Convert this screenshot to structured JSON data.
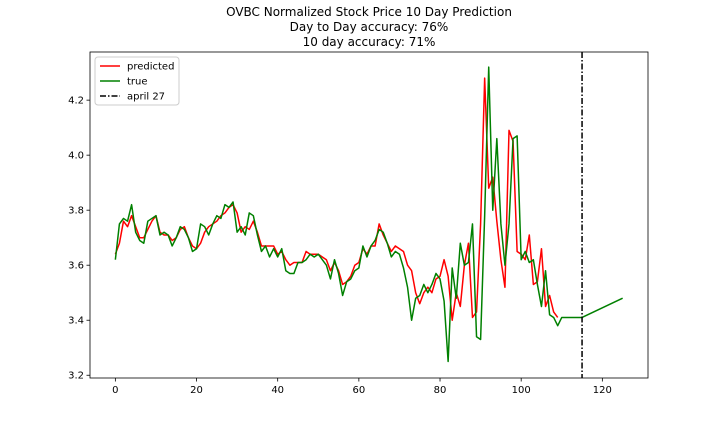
{
  "chart_data": {
    "type": "line",
    "title_lines": [
      "OVBC Normalized Stock Price 10 Day Prediction",
      "Day to Day accuracy: 76%",
      "10 day accuracy: 71%"
    ],
    "xlabel": "",
    "ylabel": "",
    "xlim": [
      -6.25,
      131.25
    ],
    "ylim": [
      3.19,
      4.375
    ],
    "x_ticks": [
      0,
      20,
      40,
      60,
      80,
      100,
      120
    ],
    "y_ticks": [
      3.2,
      3.4,
      3.6,
      3.8,
      4.0,
      4.2
    ],
    "y_tick_labels": [
      "3.2",
      "3.4",
      "3.6",
      "3.8",
      "4.0",
      "4.2"
    ],
    "legend_position": "top-left",
    "grid": false,
    "series": [
      {
        "name": "predicted",
        "color": "#ff0000",
        "style": "solid",
        "points": [
          [
            0,
            3.64
          ],
          [
            1,
            3.68
          ],
          [
            2,
            3.76
          ],
          [
            3,
            3.74
          ],
          [
            4,
            3.78
          ],
          [
            5,
            3.74
          ],
          [
            6,
            3.7
          ],
          [
            7,
            3.7
          ],
          [
            8,
            3.73
          ],
          [
            9,
            3.76
          ],
          [
            10,
            3.78
          ],
          [
            11,
            3.72
          ],
          [
            12,
            3.71
          ],
          [
            13,
            3.71
          ],
          [
            14,
            3.69
          ],
          [
            15,
            3.7
          ],
          [
            16,
            3.73
          ],
          [
            17,
            3.74
          ],
          [
            18,
            3.7
          ],
          [
            19,
            3.67
          ],
          [
            20,
            3.66
          ],
          [
            21,
            3.68
          ],
          [
            22,
            3.72
          ],
          [
            23,
            3.74
          ],
          [
            24,
            3.75
          ],
          [
            25,
            3.76
          ],
          [
            26,
            3.78
          ],
          [
            27,
            3.79
          ],
          [
            28,
            3.81
          ],
          [
            29,
            3.82
          ],
          [
            30,
            3.79
          ],
          [
            31,
            3.72
          ],
          [
            32,
            3.74
          ],
          [
            33,
            3.73
          ],
          [
            34,
            3.76
          ],
          [
            35,
            3.72
          ],
          [
            36,
            3.67
          ],
          [
            37,
            3.67
          ],
          [
            38,
            3.67
          ],
          [
            39,
            3.67
          ],
          [
            40,
            3.64
          ],
          [
            41,
            3.65
          ],
          [
            42,
            3.62
          ],
          [
            43,
            3.6
          ],
          [
            44,
            3.61
          ],
          [
            45,
            3.61
          ],
          [
            46,
            3.61
          ],
          [
            47,
            3.65
          ],
          [
            48,
            3.64
          ],
          [
            49,
            3.64
          ],
          [
            50,
            3.64
          ],
          [
            51,
            3.63
          ],
          [
            52,
            3.62
          ],
          [
            53,
            3.58
          ],
          [
            54,
            3.61
          ],
          [
            55,
            3.58
          ],
          [
            56,
            3.53
          ],
          [
            57,
            3.54
          ],
          [
            58,
            3.56
          ],
          [
            59,
            3.6
          ],
          [
            60,
            3.61
          ],
          [
            61,
            3.66
          ],
          [
            62,
            3.64
          ],
          [
            63,
            3.67
          ],
          [
            64,
            3.67
          ],
          [
            65,
            3.75
          ],
          [
            66,
            3.71
          ],
          [
            67,
            3.68
          ],
          [
            68,
            3.65
          ],
          [
            69,
            3.67
          ],
          [
            70,
            3.66
          ],
          [
            71,
            3.65
          ],
          [
            72,
            3.6
          ],
          [
            73,
            3.58
          ],
          [
            74,
            3.5
          ],
          [
            75,
            3.46
          ],
          [
            76,
            3.5
          ],
          [
            77,
            3.52
          ],
          [
            78,
            3.5
          ],
          [
            79,
            3.55
          ],
          [
            80,
            3.56
          ],
          [
            81,
            3.62
          ],
          [
            82,
            3.56
          ],
          [
            83,
            3.4
          ],
          [
            84,
            3.5
          ],
          [
            85,
            3.45
          ],
          [
            86,
            3.6
          ],
          [
            87,
            3.68
          ],
          [
            88,
            3.41
          ],
          [
            89,
            3.43
          ],
          [
            90,
            3.75
          ],
          [
            91,
            4.28
          ],
          [
            92,
            3.88
          ],
          [
            93,
            3.92
          ],
          [
            94,
            3.76
          ],
          [
            95,
            3.62
          ],
          [
            96,
            3.52
          ],
          [
            97,
            4.09
          ],
          [
            98,
            4.05
          ],
          [
            99,
            3.65
          ],
          [
            100,
            3.64
          ],
          [
            101,
            3.62
          ],
          [
            102,
            3.71
          ],
          [
            103,
            3.53
          ],
          [
            104,
            3.54
          ],
          [
            105,
            3.66
          ],
          [
            106,
            3.45
          ],
          [
            107,
            3.49
          ],
          [
            108,
            3.43
          ],
          [
            109,
            3.41
          ]
        ]
      },
      {
        "name": "true",
        "color": "#008000",
        "style": "solid",
        "points": [
          [
            0,
            3.62
          ],
          [
            1,
            3.75
          ],
          [
            2,
            3.77
          ],
          [
            3,
            3.76
          ],
          [
            4,
            3.82
          ],
          [
            5,
            3.72
          ],
          [
            6,
            3.69
          ],
          [
            7,
            3.68
          ],
          [
            8,
            3.76
          ],
          [
            9,
            3.77
          ],
          [
            10,
            3.78
          ],
          [
            11,
            3.71
          ],
          [
            12,
            3.72
          ],
          [
            13,
            3.71
          ],
          [
            14,
            3.67
          ],
          [
            15,
            3.7
          ],
          [
            16,
            3.74
          ],
          [
            17,
            3.73
          ],
          [
            18,
            3.7
          ],
          [
            19,
            3.65
          ],
          [
            20,
            3.66
          ],
          [
            21,
            3.75
          ],
          [
            22,
            3.74
          ],
          [
            23,
            3.71
          ],
          [
            24,
            3.75
          ],
          [
            25,
            3.78
          ],
          [
            26,
            3.77
          ],
          [
            27,
            3.82
          ],
          [
            28,
            3.81
          ],
          [
            29,
            3.83
          ],
          [
            30,
            3.72
          ],
          [
            31,
            3.74
          ],
          [
            32,
            3.71
          ],
          [
            33,
            3.79
          ],
          [
            34,
            3.78
          ],
          [
            35,
            3.71
          ],
          [
            36,
            3.65
          ],
          [
            37,
            3.67
          ],
          [
            38,
            3.63
          ],
          [
            39,
            3.66
          ],
          [
            40,
            3.63
          ],
          [
            41,
            3.66
          ],
          [
            42,
            3.58
          ],
          [
            43,
            3.57
          ],
          [
            44,
            3.57
          ],
          [
            45,
            3.61
          ],
          [
            46,
            3.61
          ],
          [
            47,
            3.62
          ],
          [
            48,
            3.64
          ],
          [
            49,
            3.63
          ],
          [
            50,
            3.64
          ],
          [
            51,
            3.62
          ],
          [
            52,
            3.6
          ],
          [
            53,
            3.55
          ],
          [
            54,
            3.62
          ],
          [
            55,
            3.57
          ],
          [
            56,
            3.49
          ],
          [
            57,
            3.54
          ],
          [
            58,
            3.55
          ],
          [
            59,
            3.58
          ],
          [
            60,
            3.59
          ],
          [
            61,
            3.67
          ],
          [
            62,
            3.63
          ],
          [
            63,
            3.67
          ],
          [
            64,
            3.69
          ],
          [
            65,
            3.73
          ],
          [
            66,
            3.72
          ],
          [
            67,
            3.68
          ],
          [
            68,
            3.63
          ],
          [
            69,
            3.65
          ],
          [
            70,
            3.64
          ],
          [
            71,
            3.59
          ],
          [
            72,
            3.52
          ],
          [
            73,
            3.4
          ],
          [
            74,
            3.48
          ],
          [
            75,
            3.49
          ],
          [
            76,
            3.53
          ],
          [
            77,
            3.5
          ],
          [
            78,
            3.53
          ],
          [
            79,
            3.57
          ],
          [
            80,
            3.55
          ],
          [
            81,
            3.47
          ],
          [
            82,
            3.25
          ],
          [
            83,
            3.59
          ],
          [
            84,
            3.48
          ],
          [
            85,
            3.68
          ],
          [
            86,
            3.6
          ],
          [
            87,
            3.61
          ],
          [
            88,
            3.75
          ],
          [
            89,
            3.34
          ],
          [
            90,
            3.33
          ],
          [
            91,
            3.78
          ],
          [
            92,
            4.32
          ],
          [
            93,
            3.8
          ],
          [
            94,
            4.06
          ],
          [
            95,
            3.75
          ],
          [
            96,
            3.6
          ],
          [
            97,
            3.75
          ],
          [
            98,
            4.06
          ],
          [
            99,
            4.07
          ],
          [
            100,
            3.62
          ],
          [
            101,
            3.65
          ],
          [
            102,
            3.61
          ],
          [
            103,
            3.62
          ],
          [
            104,
            3.53
          ],
          [
            105,
            3.45
          ],
          [
            106,
            3.58
          ],
          [
            107,
            3.42
          ],
          [
            108,
            3.41
          ],
          [
            109,
            3.38
          ],
          [
            110,
            3.41
          ],
          [
            115,
            3.41
          ],
          [
            125,
            3.48
          ]
        ]
      },
      {
        "name": "april 27",
        "color": "#000000",
        "style": "dashdot",
        "vertical_line_x": 115
      }
    ]
  }
}
